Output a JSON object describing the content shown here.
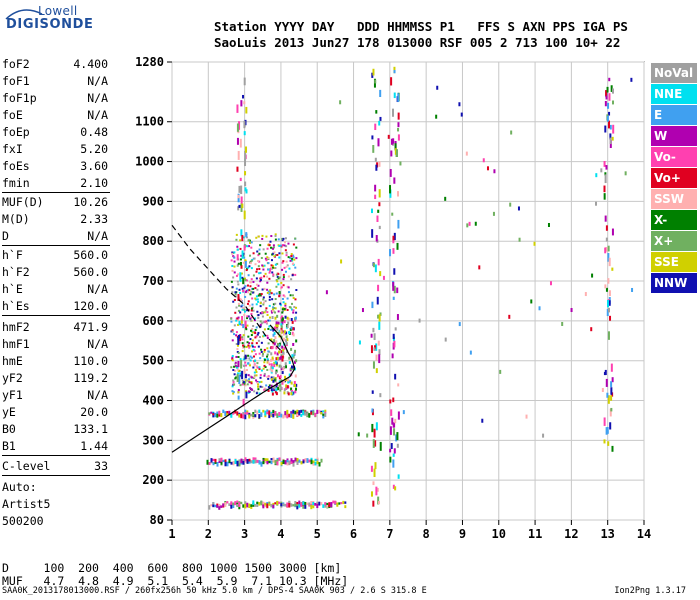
{
  "logo": {
    "line1": "Lowell",
    "line2": "DIGISONDE"
  },
  "header": {
    "row1": "Station YYYY DAY   DDD HHMMSS P1   FFS S AXN PPS IGA PS",
    "row2": "SaoLuis 2013 Jun27 178 013000 RSF 005 2 713 100 10+ 22"
  },
  "params": [
    {
      "label": "foF2",
      "value": "4.400"
    },
    {
      "label": "foF1",
      "value": "N/A"
    },
    {
      "label": "foF1p",
      "value": "N/A"
    },
    {
      "label": "foE",
      "value": "N/A"
    },
    {
      "label": "foEp",
      "value": "0.48"
    },
    {
      "label": "fxI",
      "value": "5.20"
    },
    {
      "label": "foEs",
      "value": "3.60"
    },
    {
      "label": "fmin",
      "value": "2.10"
    },
    {
      "label": "MUF(D)",
      "value": "10.26"
    },
    {
      "label": "M(D)",
      "value": "2.33"
    },
    {
      "label": "D",
      "value": "N/A"
    },
    {
      "label": "h`F",
      "value": "560.0"
    },
    {
      "label": "h`F2",
      "value": "560.0"
    },
    {
      "label": "h`E",
      "value": "N/A"
    },
    {
      "label": "h`Es",
      "value": "120.0"
    },
    {
      "label": "hmF2",
      "value": "471.9"
    },
    {
      "label": "hmF1",
      "value": "N/A"
    },
    {
      "label": "hmE",
      "value": "110.0"
    },
    {
      "label": "yF2",
      "value": "119.2"
    },
    {
      "label": "yF1",
      "value": "N/A"
    },
    {
      "label": "yE",
      "value": "20.0"
    },
    {
      "label": "B0",
      "value": "133.1"
    },
    {
      "label": "B1",
      "value": "1.44"
    },
    {
      "label": "C-level",
      "value": "33"
    }
  ],
  "auto": {
    "line1": "Auto:",
    "line2": "Artist5",
    "line3": "500200"
  },
  "legend": [
    {
      "label": "NoVal",
      "color": "#a0a0a0"
    },
    {
      "label": "NNE",
      "color": "#00e0f0"
    },
    {
      "label": "E",
      "color": "#40a0f0"
    },
    {
      "label": "W",
      "color": "#b000b0"
    },
    {
      "label": "Vo-",
      "color": "#ff40b0"
    },
    {
      "label": "Vo+",
      "color": "#e00020"
    },
    {
      "label": "SSW",
      "color": "#ffb0b0"
    },
    {
      "label": "X-",
      "color": "#008000"
    },
    {
      "label": "X+",
      "color": "#70b060"
    },
    {
      "label": "SSE",
      "color": "#d0d000"
    },
    {
      "label": "NNW",
      "color": "#1010b0"
    }
  ],
  "chart_data": {
    "type": "scatter",
    "xlim": [
      1,
      14
    ],
    "ylim": [
      80,
      1280
    ],
    "x_ticks": [
      1,
      2,
      3,
      4,
      5,
      6,
      7,
      8,
      9,
      10,
      11,
      12,
      13,
      14
    ],
    "y_ticks": [
      80,
      200,
      300,
      400,
      500,
      600,
      700,
      800,
      900,
      1000,
      1100,
      1280
    ],
    "grid": true,
    "y_scale": "nonlinear",
    "height_scale": [
      {
        "km": 80,
        "level": 0
      },
      {
        "km": 200,
        "level": 1
      },
      {
        "km": 300,
        "level": 2
      },
      {
        "km": 400,
        "level": 3
      },
      {
        "km": 500,
        "level": 4
      },
      {
        "km": 600,
        "level": 5
      },
      {
        "km": 700,
        "level": 6
      },
      {
        "km": 800,
        "level": 7
      },
      {
        "km": 900,
        "level": 8
      },
      {
        "km": 1000,
        "level": 9
      },
      {
        "km": 1100,
        "level": 10
      },
      {
        "km": 1280,
        "level": 11.5
      }
    ],
    "traces": [
      {
        "style": "solid",
        "points": [
          [
            1.0,
            270
          ],
          [
            1.5,
            300
          ],
          [
            2.0,
            330
          ],
          [
            2.5,
            360
          ],
          [
            3.0,
            390
          ],
          [
            3.5,
            420
          ],
          [
            4.0,
            447
          ],
          [
            4.25,
            460
          ],
          [
            4.38,
            480
          ]
        ]
      },
      {
        "style": "solid",
        "points": [
          [
            3.7,
            590
          ],
          [
            3.85,
            575
          ],
          [
            4.0,
            560
          ],
          [
            4.1,
            540
          ],
          [
            4.2,
            520
          ],
          [
            4.3,
            505
          ],
          [
            4.38,
            480
          ]
        ]
      },
      {
        "style": "dashed",
        "points": [
          [
            1.0,
            840
          ],
          [
            1.5,
            780
          ],
          [
            2.0,
            730
          ],
          [
            2.5,
            680
          ],
          [
            3.0,
            640
          ],
          [
            3.3,
            600
          ],
          [
            3.6,
            560
          ],
          [
            3.85,
            540
          ],
          [
            4.05,
            520
          ]
        ]
      }
    ],
    "echo_bands": [
      {
        "height_km": 130,
        "x_from": 2.0,
        "x_to": 5.8
      },
      {
        "height_km": 250,
        "x_from": 1.95,
        "x_to": 5.1
      },
      {
        "height_km": 370,
        "x_from": 2.0,
        "x_to": 5.2
      }
    ],
    "echo_cloud": {
      "x_from": 2.6,
      "x_to": 4.4,
      "height_from": 420,
      "height_to": 820
    },
    "columns": [
      {
        "freq": 2.9,
        "height_from": 380,
        "height_to": 1260
      },
      {
        "freq": 6.6,
        "height_from": 90,
        "height_to": 1270
      },
      {
        "freq": 7.1,
        "height_from": 120,
        "height_to": 1270
      },
      {
        "freq": 13.0,
        "height_from": 280,
        "height_to": 1240
      }
    ]
  },
  "bottom": {
    "row1": "D     100  200  400  600  800 1000 1500 3000 [km]",
    "row2": "MUF   4.7  4.8  4.9  5.1  5.4  5.9  7.1 10.3 [MHz]"
  },
  "footer": {
    "left": "SAA0K_2013178013000.RSF / 260fx256h 50 kHz 5.0 km / DPS-4 SAA0K 903 / 2.6 S 315.8 E",
    "right": "Ion2Png 1.3.17"
  }
}
